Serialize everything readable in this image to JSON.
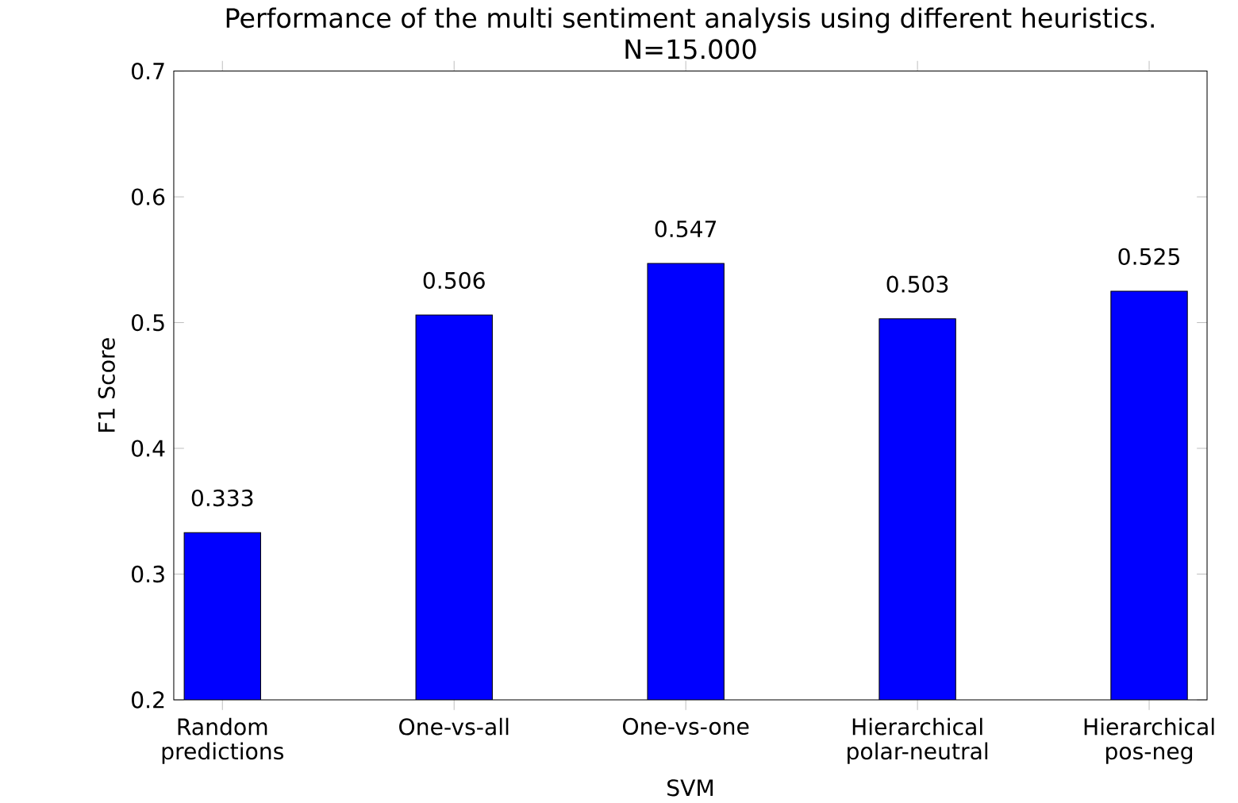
{
  "chart_data": {
    "type": "bar",
    "title": "Performance of the multi sentiment analysis using different heuristics.",
    "subtitle": "N=15.000",
    "xlabel": "SVM",
    "ylabel": "F1 Score",
    "categories": [
      "Random predictions",
      "One-vs-all",
      "One-vs-one",
      "Hierarchical polar-neutral",
      "Hierarchical pos-neg"
    ],
    "values": [
      0.333,
      0.506,
      0.547,
      0.503,
      0.525
    ],
    "color": "#0000ff",
    "ylim": [
      0.2,
      0.7
    ],
    "yticks": [
      0.2,
      0.3,
      0.4,
      0.5,
      0.6,
      0.7
    ],
    "data_labels": true,
    "grid": false
  }
}
